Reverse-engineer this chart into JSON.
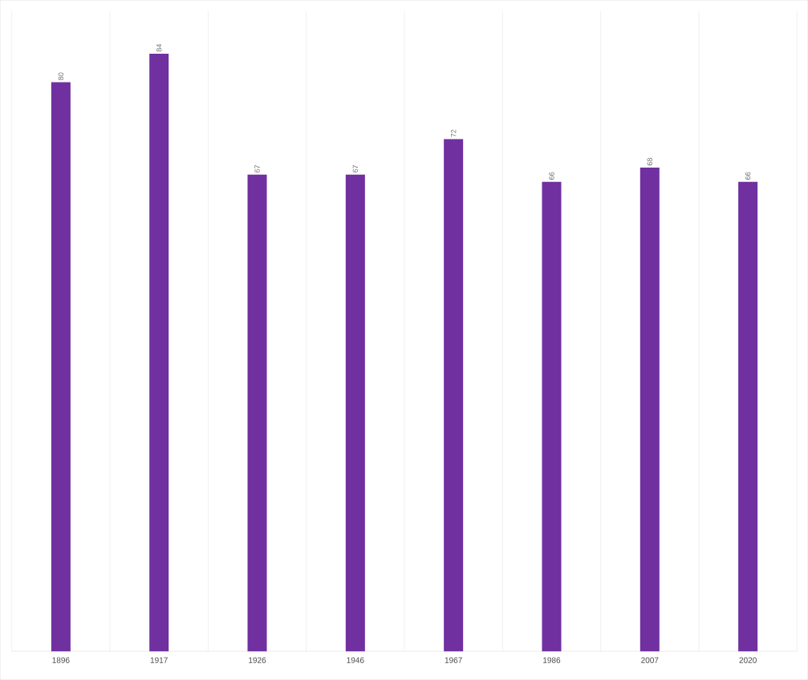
{
  "chart_data": {
    "type": "bar",
    "categories": [
      "1896",
      "1917",
      "1926",
      "1946",
      "1967",
      "1986",
      "2007",
      "2020"
    ],
    "values": [
      80,
      84,
      67,
      67,
      72,
      66,
      68,
      66
    ],
    "color": "#7030a0",
    "ylim": [
      0,
      90
    ],
    "data_labels": true,
    "grid": "x"
  }
}
